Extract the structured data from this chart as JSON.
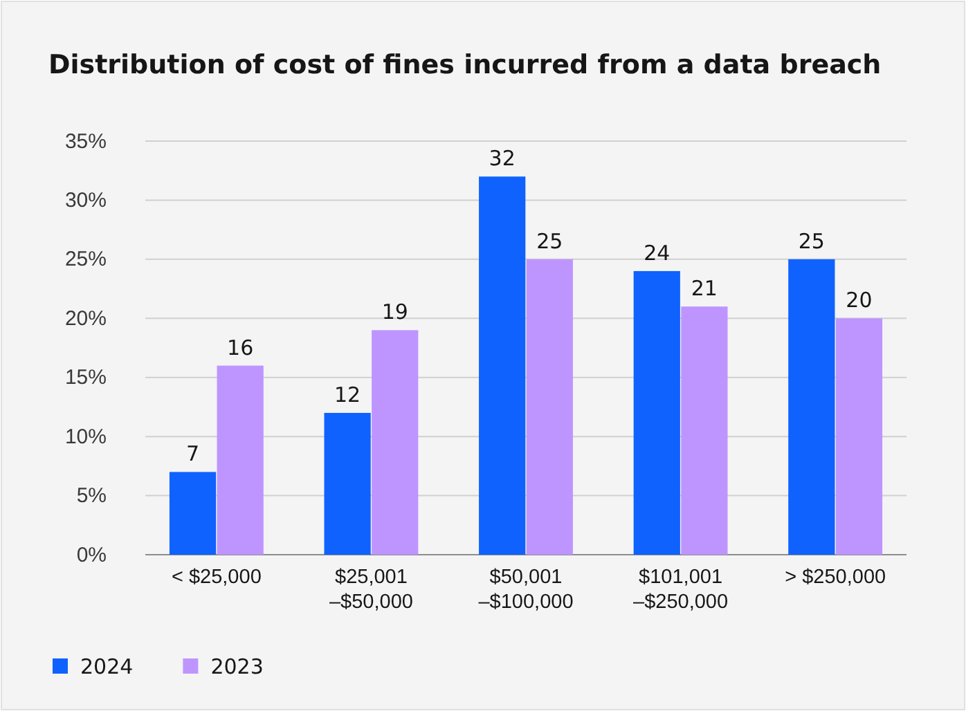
{
  "chart_data": {
    "type": "bar",
    "title": "Distribution of cost of fines incurred from a data breach",
    "categories": [
      "< $25,000",
      "$25,001\n–$50,000",
      "$50,001\n–$100,000",
      "$101,001\n–$250,000",
      "> $250,000"
    ],
    "series": [
      {
        "name": "2024",
        "color": "#0f62fe",
        "values": [
          7,
          12,
          32,
          24,
          25
        ]
      },
      {
        "name": "2023",
        "color": "#be95ff",
        "values": [
          16,
          19,
          25,
          21,
          20
        ]
      }
    ],
    "ylim": [
      0,
      35
    ],
    "yticks": [
      {
        "value": 0,
        "label": "0%"
      },
      {
        "value": 5,
        "label": "5%"
      },
      {
        "value": 10,
        "label": "10%"
      },
      {
        "value": 15,
        "label": "15%"
      },
      {
        "value": 20,
        "label": "20%"
      },
      {
        "value": 25,
        "label": "25%"
      },
      {
        "value": 30,
        "label": "30%"
      },
      {
        "value": 35,
        "label": "35%"
      }
    ],
    "grid": "y",
    "legend": "bottom left",
    "data_labels": true
  }
}
